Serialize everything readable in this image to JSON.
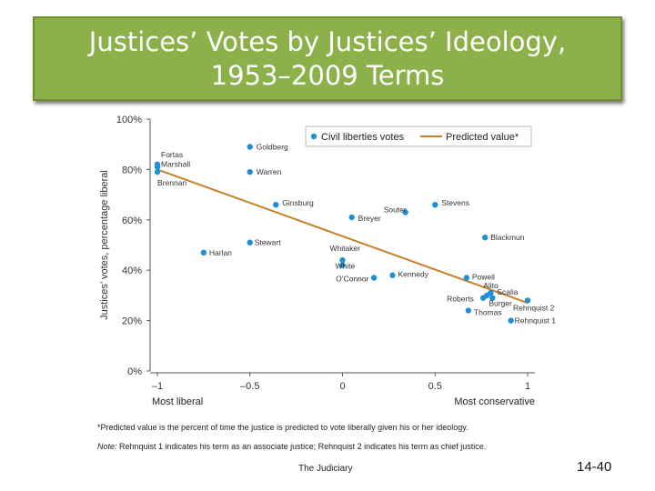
{
  "slide": {
    "title": "Justices’ Votes by Justices’ Ideology,\n1953–2009 Terms",
    "footer_text": "The Judiciary",
    "page_number": "14-40"
  },
  "notes": {
    "predicted": "*Predicted value is the percent of time the justice is predicted to vote liberally given his or her ideology.",
    "note_label": "Note:",
    "note_text": " Rehnquist 1 indicates his term as an associate justice; Rehnquist 2 indicates his term as chief justice."
  },
  "colors": {
    "title_bg": "#8db14a",
    "points": "#1f8fd6",
    "line": "#c87f2a"
  },
  "chart_data": {
    "type": "scatter",
    "ylabel": "Justices’ votes, percentage liberal",
    "xlim": [
      -1,
      1
    ],
    "ylim": [
      0,
      100
    ],
    "x_ticks": [
      "–1",
      "–0.5",
      "0",
      "0.5",
      "1"
    ],
    "x_tick_values": [
      -1,
      -0.5,
      0,
      0.5,
      1
    ],
    "y_ticks": [
      "0%",
      "20%",
      "40%",
      "60%",
      "80%",
      "100%"
    ],
    "y_tick_values": [
      0,
      20,
      40,
      60,
      80,
      100
    ],
    "x_end_labels": {
      "left": "Most liberal",
      "right": "Most conservative"
    },
    "legend": {
      "position": "top-right",
      "points_label": "Civil liberties votes",
      "line_label": "Predicted value*"
    },
    "series": [
      {
        "name": "Civil liberties votes",
        "points": [
          {
            "label": "Fortas",
            "x": -1.0,
            "y": 82
          },
          {
            "label": "Marshall",
            "x": -1.0,
            "y": 81
          },
          {
            "label": "Brennan",
            "x": -1.0,
            "y": 79
          },
          {
            "label": "Goldberg",
            "x": -0.5,
            "y": 89
          },
          {
            "label": "Warren",
            "x": -0.5,
            "y": 79
          },
          {
            "label": "Ginsburg",
            "x": -0.36,
            "y": 66
          },
          {
            "label": "Breyer",
            "x": 0.05,
            "y": 61
          },
          {
            "label": "Souter",
            "x": 0.34,
            "y": 63
          },
          {
            "label": "Stevens",
            "x": 0.5,
            "y": 66
          },
          {
            "label": "Blackmun",
            "x": 0.77,
            "y": 53
          },
          {
            "label": "Stewart",
            "x": -0.5,
            "y": 51
          },
          {
            "label": "Harlan",
            "x": -0.75,
            "y": 47
          },
          {
            "label": "Whitaker",
            "x": 0.0,
            "y": 44
          },
          {
            "label": "White",
            "x": 0.0,
            "y": 42
          },
          {
            "label": "O’Connor",
            "x": 0.17,
            "y": 37
          },
          {
            "label": "Kennedy",
            "x": 0.27,
            "y": 38
          },
          {
            "label": "Powell",
            "x": 0.67,
            "y": 37
          },
          {
            "label": "Alito",
            "x": 0.78,
            "y": 30
          },
          {
            "label": "Scalia",
            "x": 0.8,
            "y": 31
          },
          {
            "label": "Roberts",
            "x": 0.76,
            "y": 29
          },
          {
            "label": "Burger",
            "x": 0.81,
            "y": 29
          },
          {
            "label": "Rehnquist 2",
            "x": 1.0,
            "y": 28
          },
          {
            "label": "Thomas",
            "x": 0.68,
            "y": 24
          },
          {
            "label": "Rehnquist 1",
            "x": 0.91,
            "y": 20
          }
        ]
      },
      {
        "name": "Predicted value*",
        "type": "line",
        "points": [
          {
            "x": -1.0,
            "y": 80
          },
          {
            "x": 1.0,
            "y": 27
          }
        ]
      }
    ]
  }
}
